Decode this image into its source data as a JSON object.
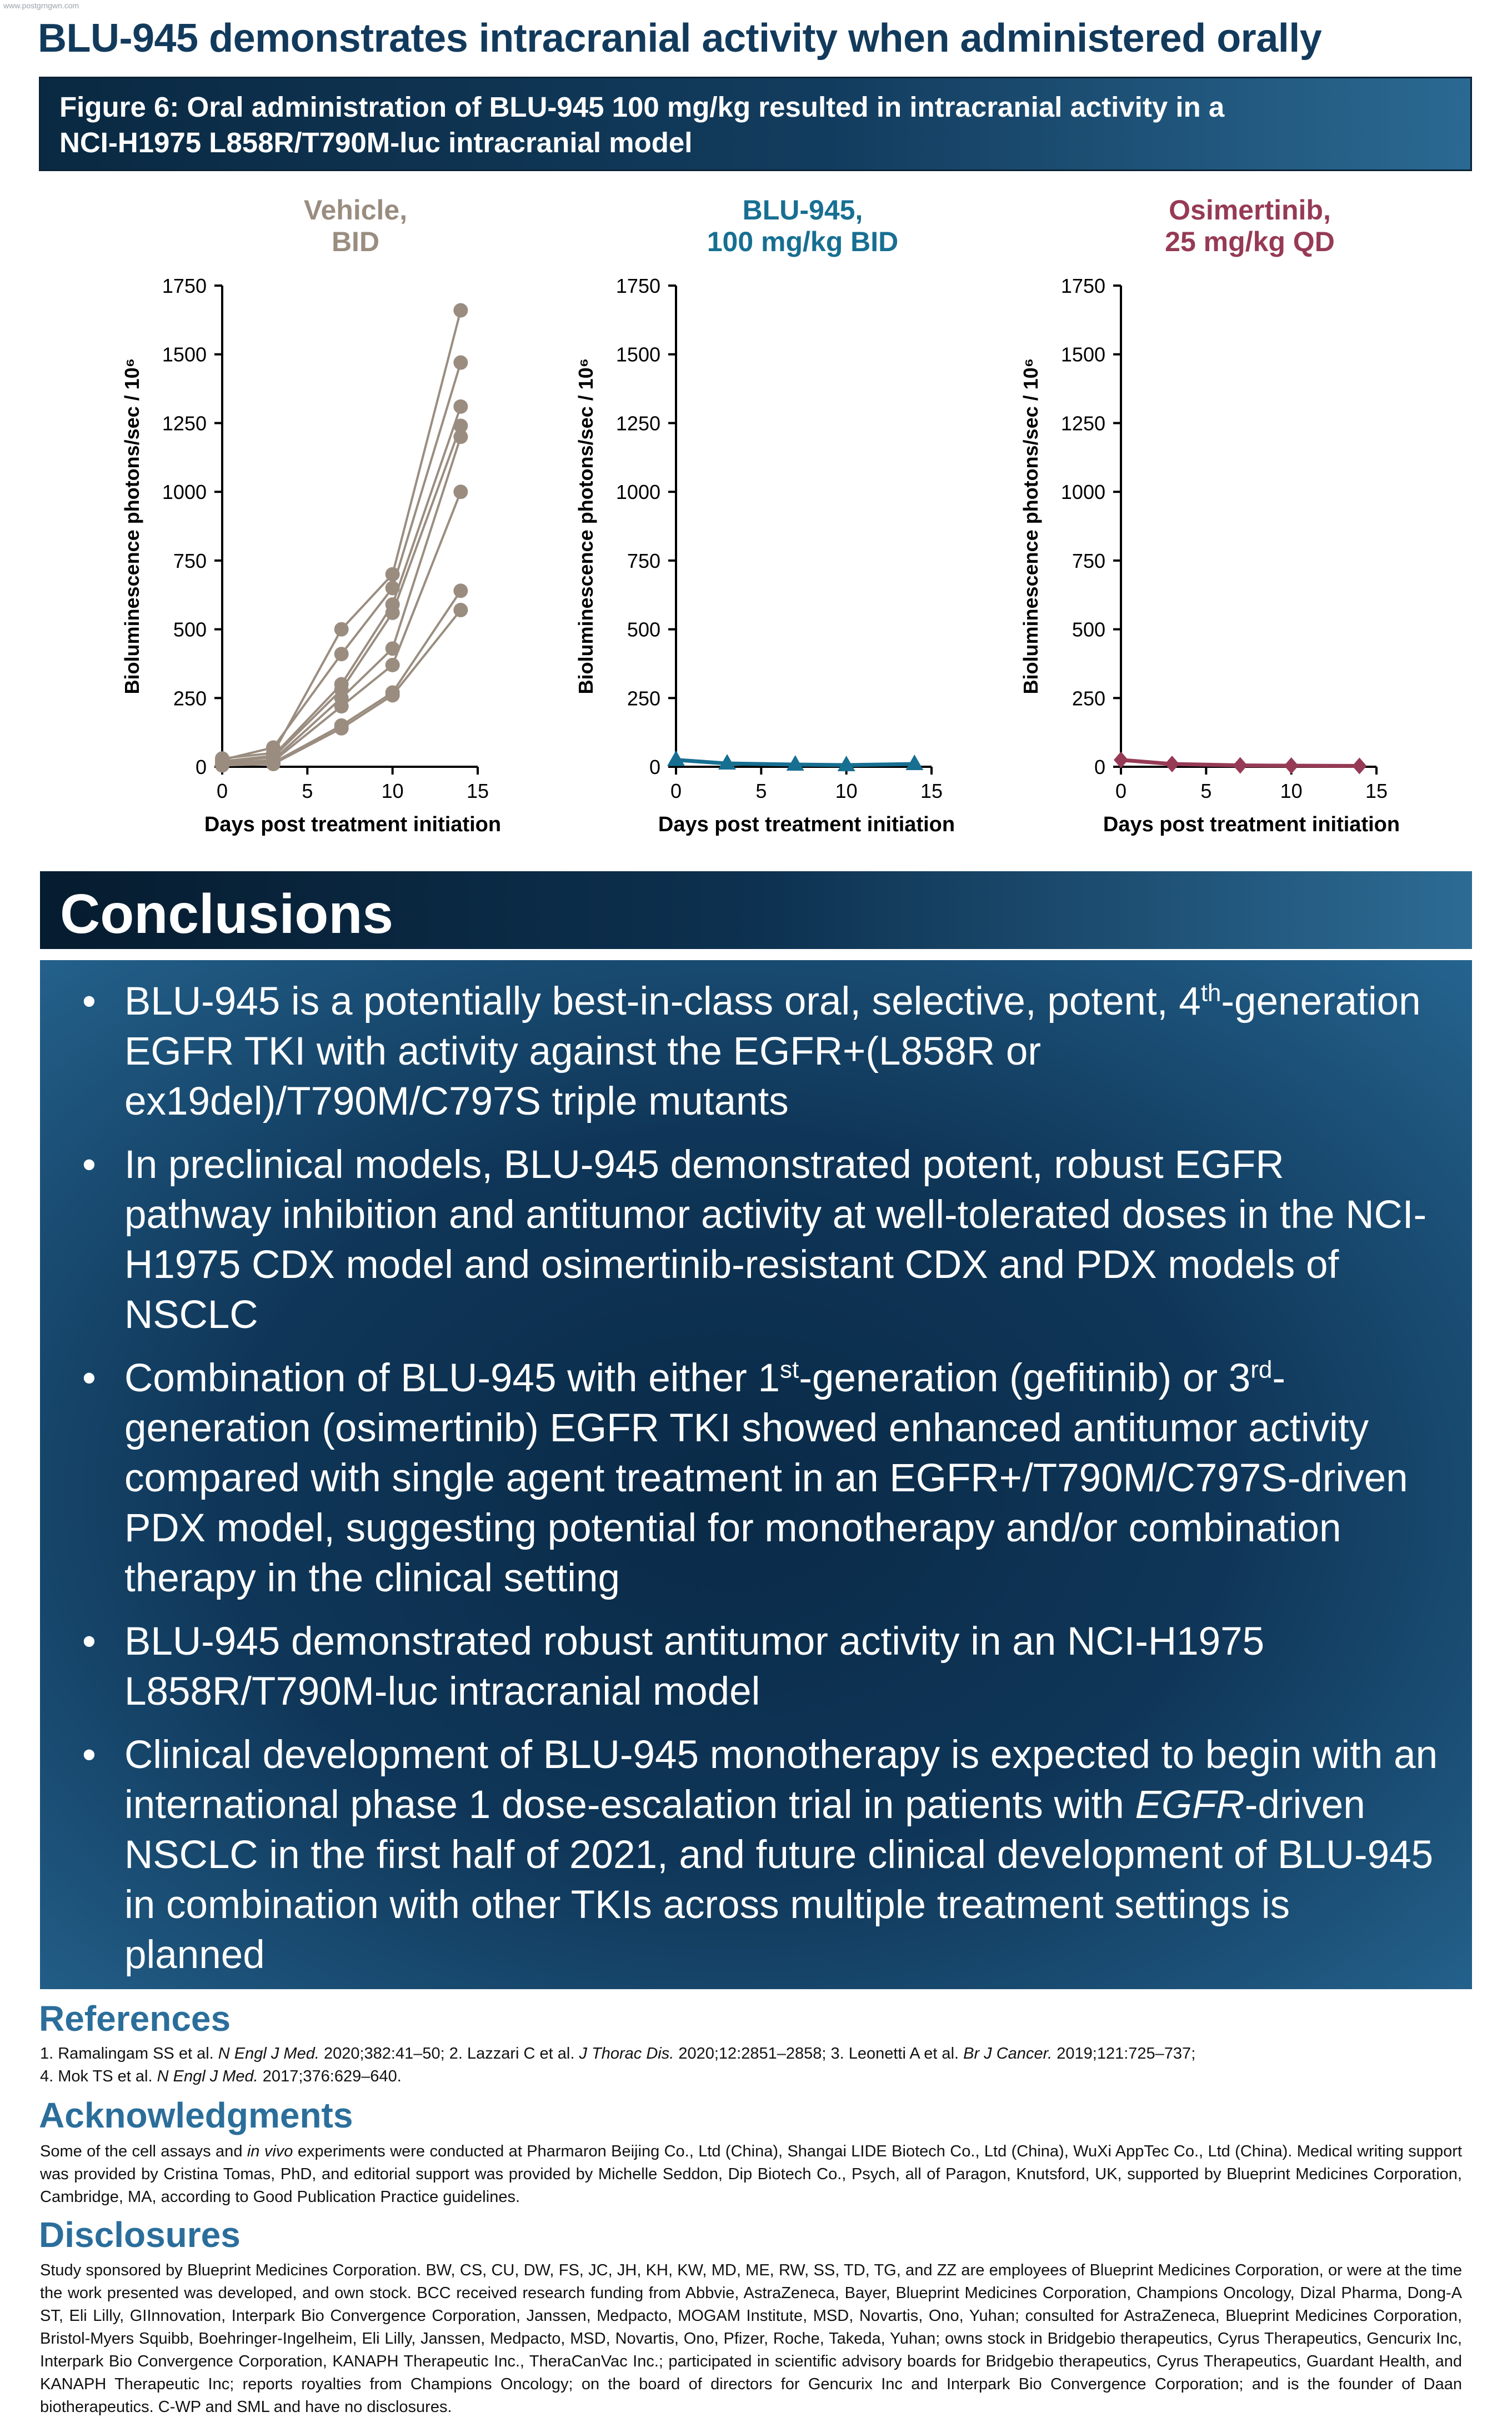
{
  "watermark": "www.postgrngwn.com",
  "title": "BLU-945 demonstrates intracranial activity when administered orally",
  "figure_caption": {
    "line1": "Figure 6: Oral administration of BLU-945 100 mg/kg resulted in intracranial activity in a",
    "line2": "NCI-H1975 L858R/T790M-luc intracranial model"
  },
  "colors": {
    "vehicle": "#9a8d80",
    "blu945": "#176f92",
    "osimertinib": "#963a55",
    "title_navy": "#123a5c",
    "section_blue": "#2b6e9b"
  },
  "chart_data": [
    {
      "type": "line",
      "title_line1": "Vehicle,",
      "title_line2": "BID",
      "xlabel": "Days post treatment initiation",
      "ylabel": "Bioluminescence photons/sec / 10⁶",
      "xlim": [
        0,
        15
      ],
      "ylim": [
        0,
        1750
      ],
      "xticks": [
        "0",
        "5",
        "10",
        "15"
      ],
      "yticks": [
        "0",
        "250",
        "500",
        "750",
        "1000",
        "1250",
        "1500",
        "1750"
      ],
      "marker": "circle",
      "series": [
        {
          "x": [
            0,
            3,
            7,
            10,
            14
          ],
          "y": [
            30,
            50,
            500,
            700,
            1660
          ]
        },
        {
          "x": [
            0,
            3,
            7,
            10,
            14
          ],
          "y": [
            25,
            70,
            410,
            650,
            1470
          ]
        },
        {
          "x": [
            0,
            3,
            7,
            10,
            14
          ],
          "y": [
            20,
            40,
            300,
            590,
            1310
          ]
        },
        {
          "x": [
            0,
            3,
            7,
            10,
            14
          ],
          "y": [
            15,
            35,
            280,
            560,
            1240
          ]
        },
        {
          "x": [
            0,
            3,
            7,
            10,
            14
          ],
          "y": [
            10,
            25,
            250,
            430,
            1200
          ]
        },
        {
          "x": [
            0,
            3,
            7,
            10,
            14
          ],
          "y": [
            12,
            20,
            220,
            370,
            1000
          ]
        },
        {
          "x": [
            0,
            3,
            7,
            10,
            14
          ],
          "y": [
            8,
            15,
            150,
            270,
            640
          ]
        },
        {
          "x": [
            0,
            3,
            7,
            10,
            14
          ],
          "y": [
            5,
            10,
            140,
            260,
            570
          ]
        }
      ]
    },
    {
      "type": "line",
      "title_line1": "BLU-945,",
      "title_line2": "100 mg/kg BID",
      "xlabel": "Days post treatment initiation",
      "ylabel": "Bioluminescence photons/sec / 10⁶",
      "xlim": [
        0,
        15
      ],
      "ylim": [
        0,
        1750
      ],
      "xticks": [
        "0",
        "5",
        "10",
        "15"
      ],
      "yticks": [
        "0",
        "250",
        "500",
        "750",
        "1000",
        "1250",
        "1500",
        "1750"
      ],
      "marker": "triangle",
      "series": [
        {
          "x": [
            0,
            3,
            7,
            10,
            14
          ],
          "y": [
            25,
            12,
            8,
            6,
            10
          ]
        }
      ]
    },
    {
      "type": "line",
      "title_line1": "Osimertinib,",
      "title_line2": "25 mg/kg QD",
      "xlabel": "Days post treatment initiation",
      "ylabel": "Bioluminescence photons/sec / 10⁶",
      "xlim": [
        0,
        15
      ],
      "ylim": [
        0,
        1750
      ],
      "xticks": [
        "0",
        "5",
        "10",
        "15"
      ],
      "yticks": [
        "0",
        "250",
        "500",
        "750",
        "1000",
        "1250",
        "1500",
        "1750"
      ],
      "marker": "diamond",
      "series": [
        {
          "x": [
            0,
            3,
            7,
            10,
            14
          ],
          "y": [
            25,
            10,
            5,
            4,
            3
          ]
        }
      ]
    }
  ],
  "conclusions": {
    "heading": "Conclusions",
    "bullet": "•",
    "b1": {
      "pre": "BLU-945 is a potentially best-in-class oral, selective, potent, 4",
      "sup": "th",
      "post": "-generation EGFR TKI with activity against the EGFR+(L858R or ex19del)/T790M/C797S triple mutants"
    },
    "b2": "In preclinical models, BLU-945 demonstrated potent, robust EGFR pathway inhibition and antitumor activity at well-tolerated doses in the NCI-H1975 CDX model and osimertinib-resistant CDX and PDX models of NSCLC",
    "b3": {
      "pre": "Combination of BLU-945 with either 1",
      "sup1": "st",
      "mid": "-generation (gefitinib) or 3",
      "sup2": "rd",
      "post": "-generation (osimertinib) EGFR TKI showed enhanced antitumor activity compared with single agent treatment in an EGFR+/T790M/C797S-driven PDX model, suggesting potential for monotherapy and/or combination therapy in the clinical setting"
    },
    "b4": "BLU-945 demonstrated robust antitumor activity in an NCI-H1975 L858R/T790M-luc intracranial model",
    "b5": {
      "pre": "Clinical development of BLU-945 monotherapy is expected to begin with an international phase 1 dose-escalation trial in patients with ",
      "em": "EGFR",
      "post": "-driven NSCLC in the first half of 2021, and future clinical development of BLU-945 in combination with other TKIs across multiple treatment settings is planned"
    }
  },
  "references": {
    "heading": "References",
    "r1": {
      "pre": "1. Ramalingam SS et al. ",
      "em": "N Engl J Med.",
      "post": " 2020;382:41–50; 2. Lazzari C et al. "
    },
    "r2": {
      "em": "J Thorac Dis.",
      "post": " 2020;12:2851–2858; 3. Leonetti A et al. "
    },
    "r3": {
      "em": "Br J Cancer.",
      "post": " 2019;121:725–737;"
    },
    "r4": {
      "pre": "4. Mok TS et al. ",
      "em": "N Engl J Med.",
      "post": " 2017;376:629–640."
    }
  },
  "acknowledgments": {
    "heading": "Acknowledgments",
    "pre": "Some of the cell assays and ",
    "em": "in vivo",
    "post": " experiments were conducted at Pharmaron Beijing Co., Ltd (China), Shangai LIDE Biotech Co., Ltd (China), WuXi AppTec Co., Ltd (China). Medical writing support was provided by Cristina Tomas, PhD, and editorial support was provided by Michelle Seddon, Dip Biotech Co., Psych, all of Paragon, Knutsford, UK, supported by Blueprint Medicines Corporation, Cambridge, MA, according to Good Publication Practice guidelines."
  },
  "disclosures": {
    "heading": "Disclosures",
    "text": "Study sponsored by Blueprint Medicines Corporation. BW, CS, CU, DW, FS, JC, JH, KH, KW, MD, ME, RW, SS, TD, TG, and ZZ are employees of Blueprint Medicines Corporation, or were at the time the work presented was developed, and own stock. BCC received research funding from Abbvie, AstraZeneca, Bayer, Blueprint Medicines Corporation, Champions Oncology, Dizal Pharma, Dong-A ST, Eli Lilly, GIInnovation, Interpark Bio Convergence Corporation, Janssen, Medpacto, MOGAM Institute, MSD, Novartis, Ono, Yuhan; consulted for AstraZeneca, Blueprint Medicines Corporation, Bristol-Myers Squibb, Boehringer-Ingelheim, Eli Lilly, Janssen, Medpacto, MSD, Novartis, Ono, Pfizer, Roche, Takeda, Yuhan; owns stock in Bridgebio therapeutics, Cyrus Therapeutics, Gencurix Inc, Interpark Bio Convergence Corporation, KANAPH Therapeutic Inc., TheraCanVac Inc.; participated in scientific advisory boards for Bridgebio therapeutics, Cyrus Therapeutics, Guardant Health, and KANAPH Therapeutic Inc; reports royalties from Champions Oncology; on the board of directors for Gencurix Inc and Interpark Bio Convergence Corporation; and is the founder of Daan biotherapeutics. C-WP and SML and have no disclosures."
  }
}
